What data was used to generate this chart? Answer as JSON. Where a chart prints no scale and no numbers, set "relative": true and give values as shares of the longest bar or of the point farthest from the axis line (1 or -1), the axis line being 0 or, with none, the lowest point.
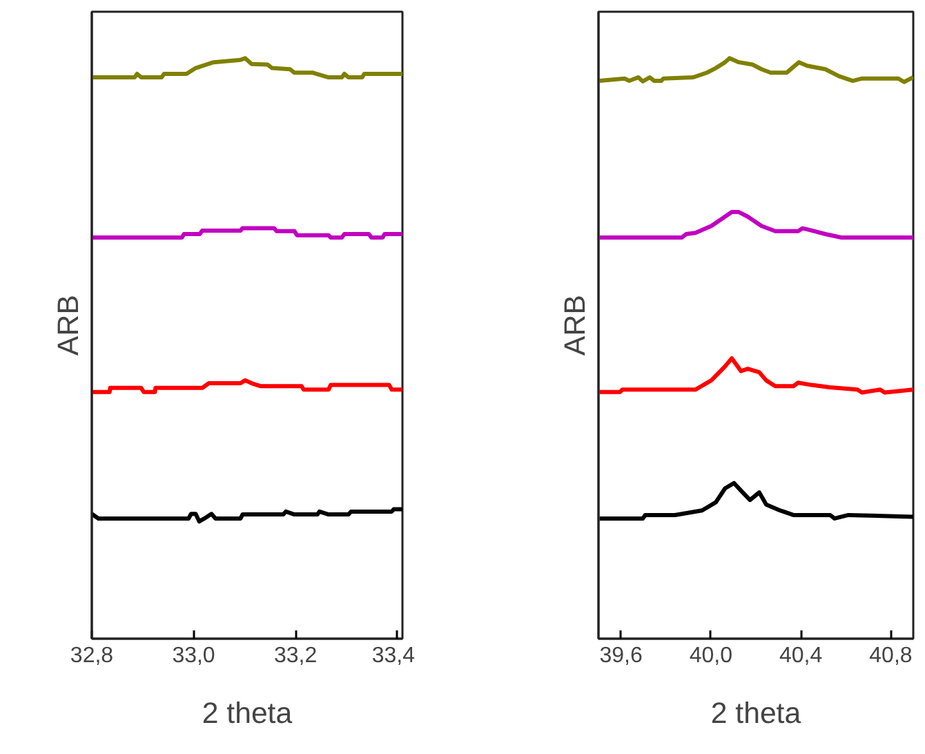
{
  "chart_data": [
    {
      "type": "line",
      "xlabel": "2 theta",
      "ylabel": "ARB",
      "relative": true,
      "tick_labels": "x",
      "grid": false,
      "xlim": [
        32.8,
        33.41
      ],
      "xticks": [
        {
          "value": 32.8,
          "label": "32,8"
        },
        {
          "value": 33.0,
          "label": "33,0"
        },
        {
          "value": 33.2,
          "label": "33,2"
        },
        {
          "value": 33.4,
          "label": "33,4"
        }
      ],
      "series": [
        {
          "color": "#808000",
          "x": [
            32.8,
            32.884,
            32.889,
            32.897,
            32.937,
            32.942,
            32.986,
            33.004,
            33.039,
            33.092,
            33.101,
            33.114,
            33.145,
            33.154,
            33.189,
            33.198,
            33.234,
            33.265,
            33.291,
            33.296,
            33.304,
            33.331,
            33.335,
            33.41
          ],
          "values": [
            0.967,
            0.967,
            0.973,
            0.967,
            0.967,
            0.973,
            0.973,
            0.983,
            0.993,
            0.997,
            1.0,
            0.99,
            0.989,
            0.983,
            0.981,
            0.975,
            0.975,
            0.967,
            0.967,
            0.973,
            0.967,
            0.967,
            0.973,
            0.973
          ]
        },
        {
          "color": "#c000c0",
          "x": [
            32.8,
            32.977,
            32.981,
            33.012,
            33.017,
            33.092,
            33.096,
            33.158,
            33.163,
            33.198,
            33.203,
            33.265,
            33.269,
            33.291,
            33.296,
            33.344,
            33.349,
            33.371,
            33.375,
            33.41
          ],
          "values": [
            0.691,
            0.691,
            0.697,
            0.697,
            0.703,
            0.703,
            0.707,
            0.707,
            0.702,
            0.702,
            0.695,
            0.695,
            0.691,
            0.691,
            0.697,
            0.697,
            0.691,
            0.691,
            0.697,
            0.697
          ]
        },
        {
          "color": "#ff0000",
          "x": [
            32.8,
            32.835,
            32.836,
            32.897,
            32.902,
            32.924,
            32.925,
            33.017,
            33.03,
            33.092,
            33.101,
            33.114,
            33.132,
            33.212,
            33.216,
            33.265,
            33.269,
            33.384,
            33.389,
            33.41
          ],
          "values": [
            0.425,
            0.425,
            0.432,
            0.432,
            0.425,
            0.425,
            0.432,
            0.432,
            0.44,
            0.44,
            0.445,
            0.44,
            0.435,
            0.435,
            0.429,
            0.429,
            0.437,
            0.437,
            0.429,
            0.429
          ]
        },
        {
          "color": "#000000",
          "x": [
            32.8,
            32.813,
            32.99,
            32.995,
            33.004,
            33.011,
            33.021,
            33.035,
            33.043,
            33.092,
            33.096,
            33.176,
            33.181,
            33.198,
            33.243,
            33.247,
            33.265,
            33.304,
            33.309,
            33.389,
            33.393,
            33.41
          ],
          "values": [
            0.215,
            0.207,
            0.207,
            0.215,
            0.215,
            0.202,
            0.207,
            0.215,
            0.207,
            0.207,
            0.214,
            0.214,
            0.219,
            0.214,
            0.214,
            0.219,
            0.214,
            0.214,
            0.219,
            0.219,
            0.223,
            0.223
          ]
        }
      ]
    },
    {
      "type": "line",
      "xlabel": "2 theta",
      "ylabel": "ARB",
      "relative": true,
      "tick_labels": "x",
      "grid": false,
      "xlim": [
        39.5,
        40.9
      ],
      "xticks": [
        {
          "value": 39.6,
          "label": "39,6"
        },
        {
          "value": 40.0,
          "label": "40,0"
        },
        {
          "value": 40.4,
          "label": "40,4"
        },
        {
          "value": 40.8,
          "label": "40,8"
        }
      ],
      "series": [
        {
          "color": "#808000",
          "x": [
            39.505,
            39.616,
            39.637,
            39.677,
            39.697,
            39.728,
            39.748,
            39.779,
            39.789,
            39.921,
            39.982,
            40.022,
            40.063,
            40.083,
            40.124,
            40.185,
            40.225,
            40.266,
            40.337,
            40.367,
            40.392,
            40.428,
            40.509,
            40.57,
            40.631,
            40.672,
            40.834,
            40.859,
            40.9
          ],
          "values": [
            0.961,
            0.965,
            0.961,
            0.967,
            0.96,
            0.967,
            0.961,
            0.961,
            0.965,
            0.967,
            0.975,
            0.983,
            0.993,
            1.0,
            0.993,
            0.989,
            0.981,
            0.975,
            0.975,
            0.985,
            0.993,
            0.987,
            0.981,
            0.969,
            0.961,
            0.965,
            0.965,
            0.959,
            0.967
          ]
        },
        {
          "color": "#c000c0",
          "x": [
            39.505,
            39.87,
            39.89,
            39.931,
            40.002,
            40.063,
            40.093,
            40.124,
            40.164,
            40.225,
            40.286,
            40.388,
            40.408,
            40.449,
            40.509,
            40.58,
            40.9
          ],
          "values": [
            0.691,
            0.691,
            0.697,
            0.699,
            0.711,
            0.727,
            0.735,
            0.735,
            0.727,
            0.711,
            0.702,
            0.702,
            0.707,
            0.703,
            0.697,
            0.691,
            0.691
          ]
        },
        {
          "color": "#ff0000",
          "x": [
            39.505,
            39.596,
            39.606,
            39.931,
            40.002,
            40.063,
            40.093,
            40.134,
            40.164,
            40.215,
            40.246,
            40.286,
            40.367,
            40.388,
            40.449,
            40.53,
            40.652,
            40.672,
            40.753,
            40.773,
            40.9
          ],
          "values": [
            0.425,
            0.425,
            0.429,
            0.429,
            0.445,
            0.469,
            0.483,
            0.461,
            0.465,
            0.459,
            0.445,
            0.435,
            0.435,
            0.441,
            0.437,
            0.433,
            0.429,
            0.424,
            0.429,
            0.424,
            0.429
          ]
        },
        {
          "color": "#000000",
          "x": [
            39.505,
            39.697,
            39.708,
            39.84,
            39.961,
            40.022,
            40.063,
            40.103,
            40.134,
            40.174,
            40.215,
            40.246,
            40.307,
            40.367,
            40.53,
            40.55,
            40.611,
            40.9
          ],
          "values": [
            0.207,
            0.207,
            0.213,
            0.213,
            0.221,
            0.235,
            0.259,
            0.268,
            0.255,
            0.239,
            0.252,
            0.231,
            0.221,
            0.213,
            0.213,
            0.207,
            0.213,
            0.21
          ]
        }
      ]
    }
  ]
}
